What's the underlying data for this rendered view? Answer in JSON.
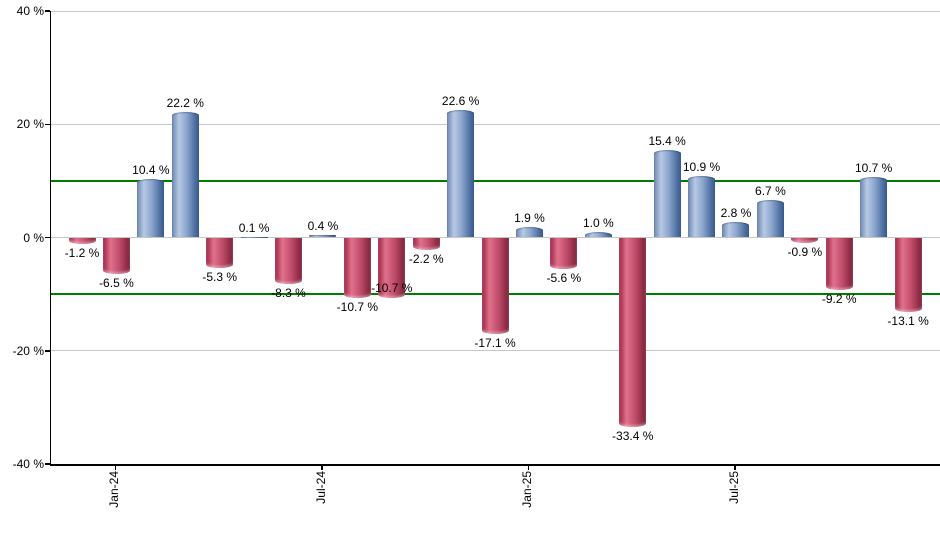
{
  "chart_data": {
    "type": "bar",
    "title": "",
    "unit": "%",
    "values": [
      -1.2,
      -6.5,
      10.4,
      22.2,
      -5.3,
      0.1,
      -8.3,
      0.4,
      -10.7,
      -10.7,
      -2.2,
      22.6,
      -17.1,
      1.9,
      -5.6,
      1.0,
      -33.4,
      15.4,
      10.9,
      2.8,
      6.7,
      -0.9,
      -9.2,
      10.7,
      -13.1
    ],
    "value_labels": [
      "-1.2 %",
      "-6.5 %",
      "10.4 %",
      "22.2 %",
      "-5.3 %",
      "0.1 %",
      "-8.3 %",
      "0.4 %",
      "-10.7 %",
      "-10.7 %",
      "-2.2 %",
      "22.6 %",
      "-17.1 %",
      "1.9 %",
      "-5.6 %",
      "1.0 %",
      "-33.4 %",
      "15.4 %",
      "10.9 %",
      "2.8 %",
      "6.7 %",
      "-0.9 %",
      "-9.2 %",
      "10.7 %",
      "-13.1 %"
    ],
    "x_ticks": [
      {
        "label": "Jan-24",
        "bar_index": 1
      },
      {
        "label": "Jul-24",
        "bar_index": 7
      },
      {
        "label": "Jan-25",
        "bar_index": 13
      },
      {
        "label": "Jul-25",
        "bar_index": 19
      }
    ],
    "y_ticks": [
      {
        "value": 40,
        "label": "40 %"
      },
      {
        "value": 20,
        "label": "20 %"
      },
      {
        "value": 0,
        "label": "0 %"
      },
      {
        "value": -20,
        "label": "-20 %"
      },
      {
        "value": -40,
        "label": "-40 %"
      }
    ],
    "ylim": [
      -40,
      40
    ],
    "gridline_values": [
      40,
      20,
      0,
      -20
    ],
    "threshold_lines": [
      {
        "value": 10
      },
      {
        "value": -10
      }
    ],
    "grid": true,
    "legend": "none",
    "colors": {
      "positive_bar": "#6f8cba",
      "negative_bar": "#c04061",
      "threshold_line": "#007c00",
      "gridline": "#c6c6c6",
      "axis": "#000000",
      "label_text": "#000000",
      "background": "#ffffff"
    },
    "label_overrides": {
      "9": {
        "dy": -19
      }
    }
  }
}
